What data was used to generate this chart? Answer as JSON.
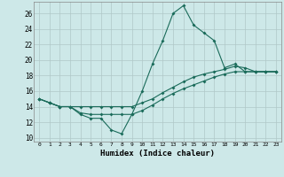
{
  "xlabel": "Humidex (Indice chaleur)",
  "background_color": "#cde8e8",
  "grid_color": "#b0c8c8",
  "line_color": "#1a6b5a",
  "xlim": [
    -0.5,
    23.5
  ],
  "ylim": [
    9.5,
    27.5
  ],
  "yticks": [
    10,
    12,
    14,
    16,
    18,
    20,
    22,
    24,
    26
  ],
  "series1": [
    15.0,
    14.5,
    14.0,
    14.0,
    13.0,
    12.5,
    12.5,
    11.0,
    10.5,
    13.0,
    16.0,
    19.5,
    22.5,
    26.0,
    27.0,
    24.5,
    23.5,
    22.5,
    19.0,
    19.5,
    18.5,
    18.5,
    18.5,
    18.5
  ],
  "series2": [
    15.0,
    14.5,
    14.0,
    14.0,
    14.0,
    14.0,
    14.0,
    14.0,
    14.0,
    14.0,
    14.5,
    15.0,
    15.8,
    16.5,
    17.2,
    17.8,
    18.2,
    18.5,
    18.8,
    19.2,
    19.0,
    18.5,
    18.5,
    18.5
  ],
  "series3": [
    15.0,
    14.5,
    14.0,
    14.0,
    13.2,
    13.0,
    13.0,
    13.0,
    13.0,
    13.0,
    13.5,
    14.2,
    15.0,
    15.7,
    16.3,
    16.8,
    17.3,
    17.8,
    18.2,
    18.5,
    18.5,
    18.5,
    18.5,
    18.5
  ]
}
